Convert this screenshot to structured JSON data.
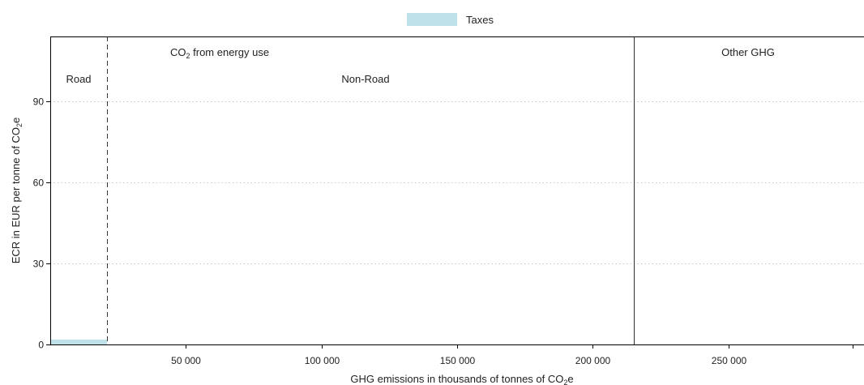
{
  "legend": {
    "items": [
      {
        "label": "Taxes",
        "color": "#bfe2ea"
      }
    ]
  },
  "annotations": {
    "road": "Road",
    "non_road": "Non-Road",
    "co2_prefix": "CO",
    "co2_sub": "2",
    "co2_suffix": " from energy use",
    "other_ghg": "Other GHG"
  },
  "axes": {
    "ylabel_prefix": "ECR in EUR per tonne of CO",
    "ylabel_sub": "2",
    "ylabel_suffix": "e",
    "xlabel_prefix": "GHG emissions in thousands of tonnes of CO",
    "xlabel_sub": "2",
    "xlabel_suffix": "e"
  },
  "chart_data": {
    "type": "bar",
    "xlim": [
      0,
      300000
    ],
    "ylim": [
      0,
      114
    ],
    "x_ticks": [
      50000,
      100000,
      150000,
      200000,
      250000
    ],
    "x_tick_labels": [
      "50 000",
      "100 000",
      "150 000",
      "200 000",
      "250 000"
    ],
    "y_ticks": [
      0,
      30,
      60,
      90
    ],
    "y_tick_labels": [
      "0",
      "30",
      "60",
      "90"
    ],
    "grid": true,
    "legend_position": "top-center",
    "series": [
      {
        "name": "Taxes",
        "color": "#bfe2ea",
        "segments": [
          {
            "x_start": 0,
            "x_end": 21000,
            "value": 1.8
          }
        ]
      }
    ],
    "dividers": [
      {
        "x": 21000,
        "style": "dashed"
      },
      {
        "x": 215000,
        "style": "solid"
      }
    ]
  }
}
